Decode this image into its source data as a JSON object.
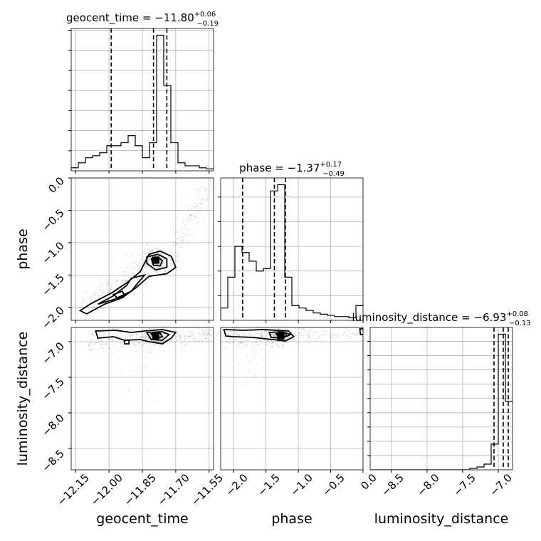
{
  "chart_data": {
    "type": "corner",
    "parameters": [
      {
        "name": "geocent_time",
        "median": "−11.80",
        "plus": "+0.06",
        "minus": "−0.19",
        "range": [
          -12.17,
          -11.53
        ],
        "ticks": [
          -12.15,
          -12.0,
          -11.85,
          -11.7,
          -11.55
        ],
        "tick_labels": [
          "−12.15",
          "−12.00",
          "−11.85",
          "−11.70",
          "−11.55"
        ],
        "quantiles": [
          -11.99,
          -11.8,
          -11.74
        ],
        "histogram": {
          "edges": [
            -12.17,
            -12.138,
            -12.106,
            -12.074,
            -12.042,
            -12.01,
            -11.978,
            -11.946,
            -11.914,
            -11.882,
            -11.85,
            -11.818,
            -11.786,
            -11.754,
            -11.722,
            -11.69,
            -11.658,
            -11.626,
            -11.594,
            -11.562,
            -11.53
          ],
          "counts": [
            3,
            8,
            13,
            15,
            18,
            25,
            25,
            28,
            35,
            25,
            13,
            28,
            135,
            85,
            28,
            8,
            5,
            5,
            3,
            2
          ]
        }
      },
      {
        "name": "phase",
        "median": "−1.37",
        "plus": "+0.17",
        "minus": "−0.49",
        "range": [
          -2.2,
          0.0
        ],
        "ticks": [
          -2.0,
          -1.5,
          -1.0,
          -0.5,
          0.0
        ],
        "tick_labels": [
          "−2.0",
          "−1.5",
          "−1.0",
          "−0.5",
          "0.0"
        ],
        "quantiles": [
          -1.86,
          -1.37,
          -1.2
        ],
        "histogram": {
          "edges": [
            -2.2,
            -2.09,
            -1.98,
            -1.87,
            -1.76,
            -1.65,
            -1.54,
            -1.43,
            -1.32,
            -1.21,
            -1.1,
            -0.99,
            -0.88,
            -0.77,
            -0.66,
            -0.55,
            -0.44,
            -0.33,
            -0.22,
            -0.11,
            0.0
          ],
          "counts": [
            10,
            35,
            60,
            55,
            48,
            40,
            42,
            105,
            110,
            35,
            12,
            10,
            8,
            6,
            5,
            4,
            3,
            3,
            2,
            12
          ]
        }
      },
      {
        "name": "luminosity_distance",
        "median": "−6.93",
        "plus": "+0.08",
        "minus": "−0.13",
        "range": [
          -8.8,
          -6.8
        ],
        "ticks": [
          -8.5,
          -8.0,
          -7.5,
          -7.0
        ],
        "tick_labels": [
          "−8.5",
          "−8.0",
          "−7.5",
          "−7.0"
        ],
        "quantiles": [
          -7.06,
          -6.93,
          -6.86
        ],
        "histogram": {
          "edges": [
            -8.8,
            -8.7,
            -8.6,
            -8.5,
            -8.4,
            -8.3,
            -8.2,
            -8.1,
            -8.0,
            -7.9,
            -7.8,
            -7.7,
            -7.6,
            -7.5,
            -7.4,
            -7.3,
            -7.2,
            -7.1,
            -7.0,
            -6.9,
            -6.8
          ],
          "counts": [
            0,
            0,
            0,
            0,
            0,
            0,
            0,
            0,
            0,
            0,
            0,
            0,
            0,
            0,
            1,
            2,
            4,
            18,
            95,
            48
          ]
        }
      }
    ],
    "grid": true
  }
}
